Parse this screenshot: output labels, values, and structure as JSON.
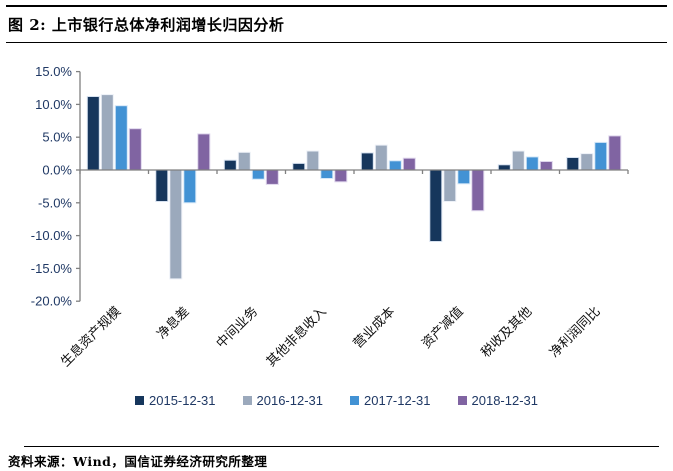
{
  "header": {
    "title": "图 2: 上市银行总体净利润增长归因分析"
  },
  "footer": {
    "source": "资料来源：Wind，国信证券经济研究所整理"
  },
  "colors": {
    "axis_line": "#808080",
    "tick_text": "#1F3864",
    "category_text": "#111111",
    "rule": "#000000",
    "background": "#FFFFFF"
  },
  "chart_data": {
    "type": "bar",
    "title": "上市银行总体净利润增长归因分析",
    "xlabel": "",
    "ylabel": "",
    "ylim": [
      -20,
      15
    ],
    "grid": false,
    "legend_position": "bottom",
    "yticks": [
      15,
      10,
      5,
      0,
      -5,
      -10,
      -15,
      -20
    ],
    "ytick_labels": [
      "15.0%",
      "10.0%",
      "5.0%",
      "0.0%",
      "-5.0%",
      "-10.0%",
      "-15.0%",
      "-20.0%"
    ],
    "categories": [
      "生息资产规模",
      "净息差",
      "中间业务",
      "其他非息收入",
      "营业成本",
      "资产减值",
      "税收及其他",
      "净利润同比"
    ],
    "series": [
      {
        "name": "2015-12-31",
        "color": "#16365C",
        "border": "#D7E2F0",
        "values": [
          11.2,
          -4.8,
          1.5,
          1.0,
          2.6,
          -10.9,
          0.8,
          1.9
        ]
      },
      {
        "name": "2016-12-31",
        "color": "#9BA9BC",
        "border": "#EDF1F7",
        "values": [
          11.5,
          -16.6,
          2.7,
          2.9,
          3.8,
          -4.8,
          2.9,
          2.5
        ]
      },
      {
        "name": "2017-12-31",
        "color": "#4292D4",
        "border": "#D6E8F8",
        "values": [
          9.8,
          -5.0,
          -1.4,
          -1.3,
          1.4,
          -2.1,
          2.0,
          4.2
        ]
      },
      {
        "name": "2018-12-31",
        "color": "#8064A2",
        "border": "#DED5EC",
        "values": [
          6.3,
          5.5,
          -2.2,
          -1.8,
          1.8,
          -6.2,
          1.3,
          5.2
        ]
      }
    ]
  }
}
